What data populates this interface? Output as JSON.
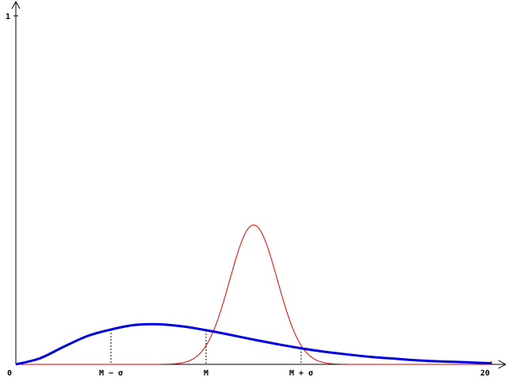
{
  "chart_data": {
    "type": "line",
    "title": "",
    "xlabel": "",
    "ylabel": "",
    "xlim": [
      0,
      20
    ],
    "ylim": [
      0,
      1
    ],
    "grid": false,
    "x_tick_labels": [
      {
        "x": 0,
        "label": "0"
      },
      {
        "x": 20,
        "label": "20"
      }
    ],
    "y_tick_labels": [
      {
        "y": 1,
        "label": "1"
      }
    ],
    "markers": [
      {
        "x": 4,
        "label": "M − σ"
      },
      {
        "x": 8,
        "label": "M"
      },
      {
        "x": 12,
        "label": "M + σ"
      }
    ],
    "series": [
      {
        "color": "#0000dd",
        "line": "thick",
        "x": [
          0,
          1,
          2,
          3,
          4,
          5,
          6,
          7,
          8,
          9,
          10,
          11,
          12,
          13,
          14,
          15,
          16,
          17,
          18,
          19,
          20
        ],
        "y": [
          0.0,
          0.017,
          0.05,
          0.081,
          0.1,
          0.113,
          0.115,
          0.109,
          0.098,
          0.085,
          0.071,
          0.058,
          0.046,
          0.036,
          0.028,
          0.021,
          0.016,
          0.011,
          0.008,
          0.006,
          0.003
        ]
      },
      {
        "color": "#dd0000",
        "line": "thin",
        "distribution": "normal",
        "mean": 10,
        "sd": 1,
        "x_range": [
          0,
          20
        ],
        "peak": 0.4
      }
    ]
  }
}
